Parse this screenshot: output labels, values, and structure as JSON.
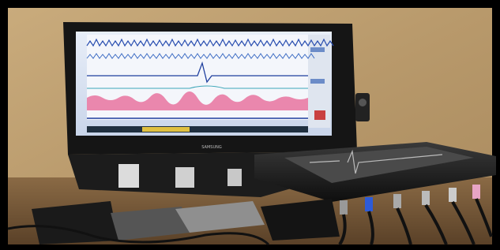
{
  "laptop": {
    "brand": "SAMSUNG"
  }
}
